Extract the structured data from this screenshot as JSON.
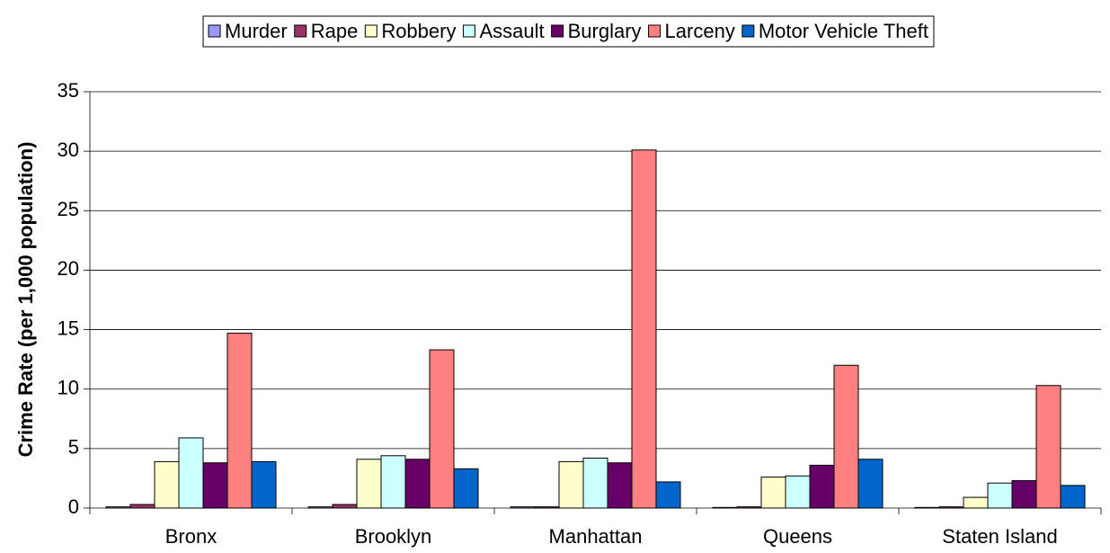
{
  "chart_data": {
    "type": "bar",
    "y_label": "Crime Rate (per 1,000 population)",
    "categories": [
      "Bronx",
      "Brooklyn",
      "Manhattan",
      "Queens",
      "Staten Island"
    ],
    "series": [
      {
        "name": "Murder",
        "color": "#9999ff",
        "values": [
          0.1,
          0.1,
          0.1,
          0.05,
          0.05
        ]
      },
      {
        "name": "Rape",
        "color": "#993366",
        "values": [
          0.3,
          0.3,
          0.1,
          0.1,
          0.1
        ]
      },
      {
        "name": "Robbery",
        "color": "#ffffcc",
        "values": [
          3.9,
          4.1,
          3.9,
          2.6,
          0.9
        ]
      },
      {
        "name": "Assault",
        "color": "#ccffff",
        "values": [
          5.9,
          4.4,
          4.2,
          2.7,
          2.1
        ]
      },
      {
        "name": "Burglary",
        "color": "#660066",
        "values": [
          3.8,
          4.1,
          3.8,
          3.6,
          2.3
        ]
      },
      {
        "name": "Larceny",
        "color": "#ff8080",
        "values": [
          14.7,
          13.3,
          30.1,
          12.0,
          10.3
        ]
      },
      {
        "name": "Motor Vehicle Theft",
        "color": "#0066cc",
        "values": [
          3.9,
          3.3,
          2.2,
          4.1,
          1.9
        ]
      }
    ],
    "ylim": [
      0,
      35
    ],
    "yticks": [
      0,
      5,
      10,
      15,
      20,
      25,
      30,
      35
    ],
    "grid": true,
    "legend": "top"
  }
}
